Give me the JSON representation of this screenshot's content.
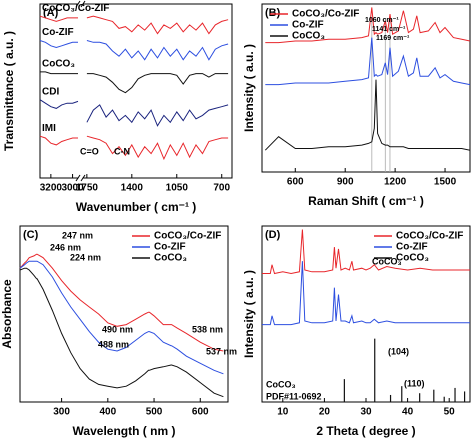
{
  "chart_data": [
    {
      "type": "line",
      "title": "(A)",
      "xlabel": "Wavenumber ( cm⁻¹ )",
      "ylabel": "Transmittance ( a.u. )",
      "xsegments": [
        [
          3300,
          2950
        ],
        [
          1780,
          620
        ]
      ],
      "xticks": [
        3200,
        3000,
        1750,
        1400,
        1050,
        700
      ],
      "ylim": [
        0,
        10
      ],
      "legend": false,
      "x": [
        3300,
        3250,
        3200,
        3150,
        3100,
        3050,
        3000,
        2950,
        1750,
        1700,
        1650,
        1600,
        1550,
        1500,
        1450,
        1400,
        1350,
        1300,
        1250,
        1200,
        1150,
        1100,
        1050,
        1000,
        950,
        900,
        850,
        800,
        750,
        700,
        650
      ],
      "series": [
        {
          "name": "CoCO₃/Co-ZIF",
          "color": "#e8262b",
          "values": [
            9.3,
            9.2,
            9.1,
            9.0,
            9.1,
            9.2,
            9.2,
            9.2,
            9.2,
            9.3,
            9.2,
            9.1,
            9.0,
            8.6,
            8.7,
            8.4,
            8.8,
            8.5,
            8.9,
            8.3,
            8.8,
            8.6,
            8.9,
            8.4,
            8.8,
            8.5,
            8.9,
            8.3,
            8.8,
            9.0,
            9.1
          ]
        },
        {
          "name": "Co-ZIF",
          "color": "#2d4fe0",
          "values": [
            7.9,
            7.8,
            7.6,
            7.5,
            7.6,
            7.7,
            7.8,
            7.8,
            7.9,
            7.8,
            7.8,
            7.7,
            7.3,
            7.0,
            7.4,
            6.9,
            7.3,
            6.8,
            7.4,
            6.9,
            7.5,
            7.0,
            7.4,
            6.8,
            7.3,
            7.0,
            7.5,
            6.8,
            7.4,
            7.6,
            7.7
          ]
        },
        {
          "name": "CoCO₃",
          "color": "#111111",
          "values": [
            6.1,
            6.1,
            6.0,
            6.0,
            6.0,
            6.0,
            6.0,
            6.0,
            6.0,
            6.0,
            5.9,
            5.8,
            5.5,
            5.1,
            4.9,
            5.2,
            5.7,
            5.9,
            6.0,
            6.0,
            6.0,
            6.0,
            5.9,
            5.4,
            5.9,
            6.0,
            6.0,
            5.8,
            6.0,
            6.0,
            6.0
          ]
        },
        {
          "name": "CDI",
          "color": "#1a237e",
          "values": [
            4.5,
            4.3,
            4.1,
            4.0,
            4.2,
            4.3,
            4.3,
            4.4,
            3.2,
            3.9,
            4.2,
            3.5,
            3.9,
            3.3,
            3.6,
            3.2,
            3.8,
            3.4,
            3.9,
            3.0,
            3.6,
            3.2,
            3.8,
            3.3,
            3.9,
            3.4,
            3.6,
            3.9,
            4.0,
            4.1,
            4.2
          ]
        },
        {
          "name": "IMI",
          "color": "#e8262b",
          "values": [
            2.4,
            2.3,
            2.0,
            1.9,
            2.1,
            2.2,
            2.3,
            2.3,
            2.4,
            2.3,
            2.2,
            2.0,
            1.4,
            1.8,
            1.3,
            1.9,
            1.2,
            1.8,
            1.4,
            2.0,
            1.1,
            1.9,
            1.3,
            2.0,
            1.2,
            1.9,
            1.4,
            2.1,
            2.2,
            2.3,
            2.3
          ]
        }
      ],
      "annotations": [
        {
          "text": "C=O",
          "color": "#000000"
        },
        {
          "text": "C-N",
          "color": "#000000"
        }
      ]
    },
    {
      "type": "line",
      "title": "(B)",
      "xlabel": "Raman Shift ( cm⁻¹ )",
      "ylabel": "Intensity ( a.u. )",
      "xlim": [
        400,
        1650
      ],
      "xticks": [
        600,
        900,
        1200,
        1500
      ],
      "ylim": [
        0,
        10
      ],
      "legend": "upper left",
      "reference_lines": [
        1060,
        1141,
        1169
      ],
      "x": [
        420,
        500,
        600,
        700,
        800,
        900,
        1000,
        1040,
        1060,
        1075,
        1085,
        1095,
        1120,
        1141,
        1155,
        1169,
        1185,
        1220,
        1250,
        1280,
        1310,
        1330,
        1350,
        1400,
        1440,
        1470,
        1500,
        1550,
        1600,
        1650
      ],
      "series": [
        {
          "name": "CoCO₃/Co-ZIF",
          "color": "#e8262b",
          "values": [
            7.7,
            7.7,
            7.8,
            7.8,
            7.9,
            7.9,
            8.0,
            8.1,
            9.8,
            8.2,
            8.3,
            8.2,
            8.3,
            9.0,
            8.3,
            9.4,
            8.2,
            8.4,
            9.6,
            8.3,
            8.5,
            9.3,
            8.3,
            8.4,
            8.9,
            8.3,
            8.6,
            8.0,
            7.9,
            7.8
          ]
        },
        {
          "name": "Co-ZIF",
          "color": "#2d4fe0",
          "values": [
            5.2,
            5.2,
            5.3,
            5.3,
            5.3,
            5.4,
            5.5,
            5.6,
            8.0,
            5.7,
            5.8,
            5.7,
            5.8,
            6.5,
            5.8,
            7.4,
            5.7,
            6.0,
            6.9,
            5.7,
            5.9,
            6.8,
            5.7,
            5.7,
            6.2,
            5.6,
            5.8,
            5.4,
            5.3,
            5.2
          ]
        },
        {
          "name": "CoCO₃",
          "color": "#111111",
          "values": [
            1.3,
            2.1,
            1.4,
            1.4,
            1.5,
            1.5,
            1.6,
            1.7,
            1.8,
            2.6,
            5.5,
            2.3,
            1.7,
            1.6,
            1.6,
            1.5,
            1.5,
            1.5,
            1.5,
            1.4,
            1.4,
            1.4,
            1.4,
            1.4,
            1.4,
            1.4,
            1.4,
            1.4,
            1.4,
            1.3
          ]
        }
      ],
      "annotations": [
        {
          "text": "1060 cm⁻¹",
          "color": "#000000"
        },
        {
          "text": "1141 cm⁻¹",
          "color": "#000000"
        },
        {
          "text": "1169 cm⁻¹",
          "color": "#000000"
        }
      ]
    },
    {
      "type": "line",
      "title": "(C)",
      "xlabel": "Wavelength ( nm )",
      "ylabel": "Absorbance",
      "xlim": [
        210,
        660
      ],
      "xticks": [
        300,
        400,
        500,
        600
      ],
      "ylim": [
        0,
        10
      ],
      "legend": "upper right",
      "x": [
        210,
        220,
        224,
        230,
        240,
        246,
        247,
        260,
        280,
        300,
        320,
        340,
        360,
        380,
        400,
        420,
        440,
        460,
        480,
        488,
        490,
        500,
        520,
        537,
        538,
        550,
        570,
        600,
        630,
        650
      ],
      "series": [
        {
          "name": "CoCO₃/Co-ZIF",
          "color": "#e8262b",
          "values": [
            7.6,
            7.9,
            8.0,
            8.2,
            8.3,
            8.4,
            8.4,
            8.2,
            7.6,
            6.9,
            6.3,
            5.8,
            5.4,
            5.0,
            4.5,
            4.3,
            4.4,
            4.7,
            5.0,
            5.1,
            5.1,
            4.9,
            4.4,
            4.4,
            4.4,
            4.2,
            3.9,
            3.4,
            3.0,
            2.9
          ]
        },
        {
          "name": "Co-ZIF",
          "color": "#2d4fe0",
          "values": [
            7.6,
            7.8,
            7.9,
            8.0,
            8.0,
            8.0,
            8.0,
            7.8,
            7.1,
            6.2,
            5.4,
            4.7,
            4.0,
            3.4,
            3.0,
            2.9,
            3.1,
            3.5,
            3.9,
            4.0,
            4.0,
            3.9,
            3.4,
            3.2,
            3.2,
            3.0,
            2.6,
            2.2,
            1.8,
            1.6
          ]
        },
        {
          "name": "CoCO₃",
          "color": "#111111",
          "values": [
            7.5,
            7.6,
            7.6,
            7.5,
            7.2,
            7.0,
            7.0,
            6.4,
            5.2,
            3.9,
            2.8,
            1.9,
            1.3,
            1.0,
            0.9,
            0.8,
            0.9,
            1.2,
            1.6,
            1.8,
            1.8,
            1.9,
            2.0,
            2.1,
            2.1,
            2.0,
            1.7,
            1.1,
            0.5,
            0.3
          ]
        }
      ],
      "annotations": [
        {
          "text": "247 nm",
          "color": "#e8262b"
        },
        {
          "text": "246 nm",
          "color": "#2d4fe0"
        },
        {
          "text": "224 nm",
          "color": "#000000"
        },
        {
          "text": "490 nm",
          "color": "#e8262b"
        },
        {
          "text": "538 nm",
          "color": "#e8262b"
        },
        {
          "text": "488 nm",
          "color": "#2d4fe0"
        },
        {
          "text": "537 nm",
          "color": "#000000"
        }
      ]
    },
    {
      "type": "line",
      "title": "(D)",
      "xlabel": "2 Theta ( degree )",
      "ylabel": "Intensity ( a.u. )",
      "xlim": [
        5,
        55
      ],
      "xticks": [
        10,
        20,
        30,
        40,
        50
      ],
      "ylim": [
        0,
        10
      ],
      "legend": "upper right",
      "x": [
        5,
        7,
        7.4,
        8,
        10,
        12,
        14,
        14.7,
        15.3,
        17,
        20,
        22,
        22.4,
        22.8,
        23.4,
        24,
        25,
        26,
        26.6,
        27,
        29,
        30,
        31,
        32,
        33,
        35,
        37,
        40,
        43,
        46,
        50,
        55
      ],
      "series": [
        {
          "name": "CoCO₃/Co-ZIF",
          "color": "#e8262b",
          "values": [
            7.3,
            7.3,
            7.8,
            7.3,
            7.4,
            7.3,
            7.4,
            9.8,
            7.5,
            7.4,
            7.4,
            7.5,
            8.8,
            7.6,
            8.7,
            7.5,
            7.6,
            7.5,
            8.0,
            7.5,
            7.6,
            7.5,
            7.6,
            7.8,
            7.5,
            7.7,
            7.6,
            7.5,
            7.6,
            7.5,
            7.5,
            7.5
          ]
        },
        {
          "name": "Co-ZIF",
          "color": "#2d4fe0",
          "values": [
            4.4,
            4.4,
            4.9,
            4.4,
            4.4,
            4.4,
            4.5,
            8.0,
            4.6,
            4.5,
            4.5,
            4.6,
            6.5,
            4.6,
            6.1,
            4.6,
            4.6,
            4.5,
            4.9,
            4.5,
            4.6,
            4.5,
            4.5,
            4.7,
            4.5,
            4.6,
            4.5,
            4.5,
            4.5,
            4.5,
            4.5,
            4.5
          ]
        },
        {
          "name": "CoCO₃",
          "color": "#111111",
          "style": "stem",
          "x": [
            24.8,
            32.1,
            35.9,
            38.6,
            42.9,
            46.3,
            48.8,
            51.4,
            53.7
          ],
          "values": [
            1.3,
            3.6,
            0.4,
            0.9,
            0.5,
            0.7,
            0.3,
            0.8,
            0.6
          ]
        }
      ],
      "annotations": [
        {
          "text": "(104)",
          "color": "#000000"
        },
        {
          "text": "(110)",
          "color": "#000000"
        },
        {
          "text": "CoCO₃",
          "color": "#000000"
        },
        {
          "text": "PDF#11-0692",
          "color": "#000000"
        },
        {
          "text": "CoCO₃",
          "color": "#e8262b"
        }
      ]
    }
  ]
}
